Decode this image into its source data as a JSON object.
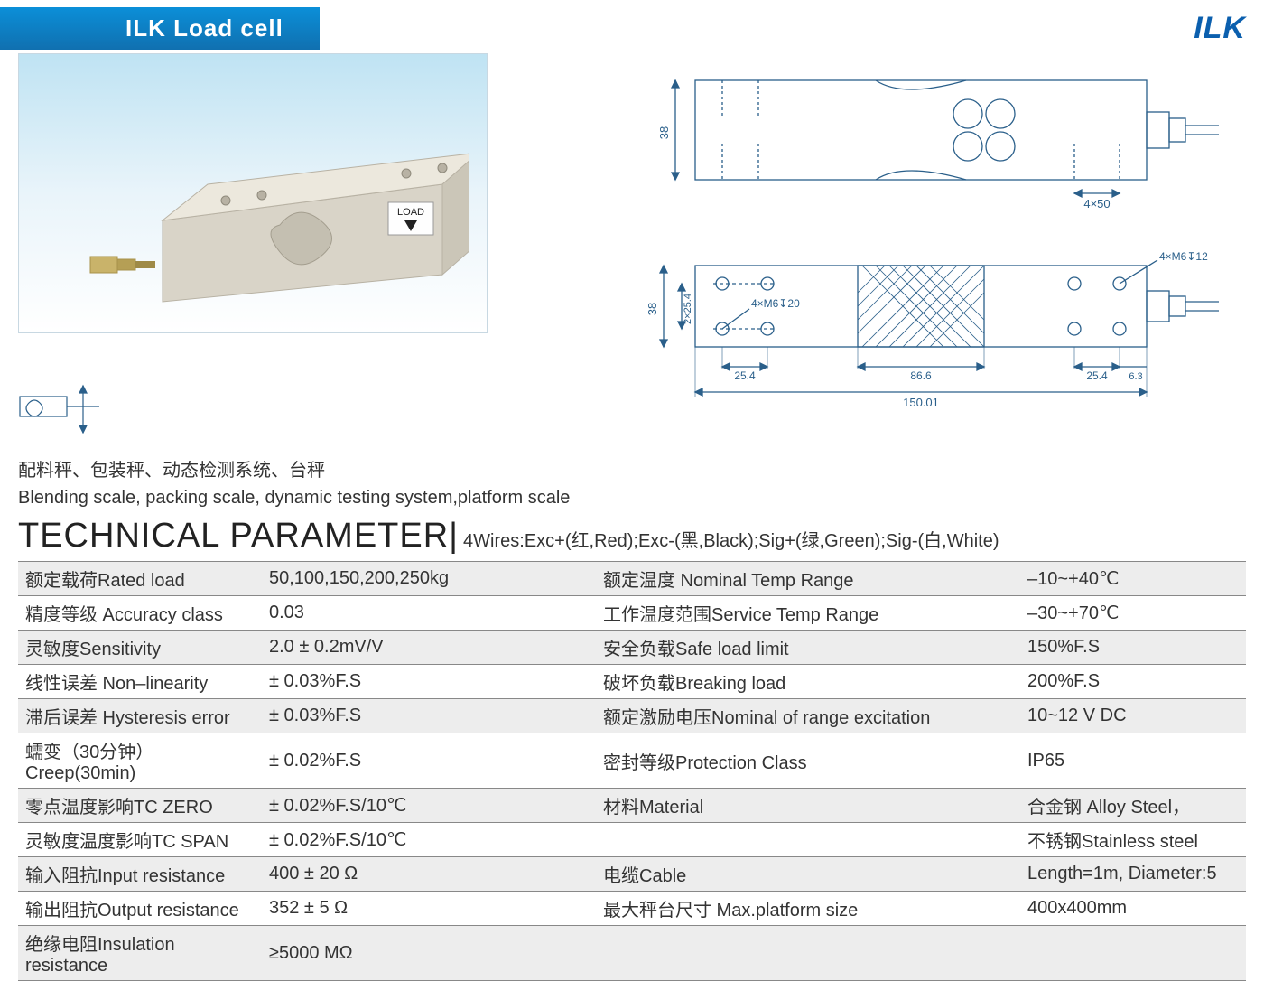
{
  "header": {
    "title": "ILK  Load cell",
    "model_right": "ILK"
  },
  "photo": {
    "load_label": "LOAD"
  },
  "drawing": {
    "dim_38_a": "38",
    "dim_4x50": "4×50",
    "dim_38_b": "38",
    "dim_2x254": "2×25.4",
    "dim_4xm6_20": "4×M6↧20",
    "dim_4xm6_12": "4×M6↧12",
    "dim_254_a": "25.4",
    "dim_866": "86.6",
    "dim_254_b": "25.4",
    "dim_63": "6.3",
    "dim_150": "150.01"
  },
  "applications": {
    "zh": "配料秤、包装秤、动态检测系统、台秤",
    "en": "Blending scale, packing scale, dynamic testing system,platform scale"
  },
  "tech_header": {
    "title": "TECHNICAL PARAMETER",
    "wires": "4Wires:Exc+(红,Red);Exc-(黑,Black);Sig+(绿,Green);Sig-(白,White)"
  },
  "params": {
    "rows": [
      {
        "l1": "额定载荷Rated load",
        "l2": "50,100,150,200,250kg",
        "r1": "额定温度 Nominal Temp Range",
        "r2": "–10~+40℃"
      },
      {
        "l1": "精度等级 Accuracy class",
        "l2": "0.03",
        "r1": "工作温度范围Service Temp Range",
        "r2": "–30~+70℃"
      },
      {
        "l1": "灵敏度Sensitivity",
        "l2": "2.0 ± 0.2mV/V",
        "r1": "安全负载Safe load limit",
        "r2": "150%F.S"
      },
      {
        "l1": "线性误差 Non–linearity",
        "l2": "± 0.03%F.S",
        "r1": "破坏负载Breaking load",
        "r2": "200%F.S"
      },
      {
        "l1": "滞后误差 Hysteresis error",
        "l2": "± 0.03%F.S",
        "r1": "额定激励电压Nominal of range excitation",
        "r2": "10~12 V DC"
      },
      {
        "l1": "蠕变（30分钟）Creep(30min)",
        "l2": "± 0.02%F.S",
        "r1": "密封等级Protection Class",
        "r2": "IP65"
      },
      {
        "l1": "零点温度影响TC ZERO",
        "l2": "± 0.02%F.S/10℃",
        "r1": "材料Material",
        "r2": "合金钢 Alloy Steel，"
      },
      {
        "l1": "灵敏度温度影响TC SPAN",
        "l2": "± 0.02%F.S/10℃",
        "r1": "",
        "r2": "不锈钢Stainless steel"
      },
      {
        "l1": "输入阻抗Input resistance",
        "l2": "400 ± 20 Ω",
        "r1": "电缆Cable",
        "r2": "Length=1m, Diameter:5"
      },
      {
        "l1": "输出阻抗Output resistance",
        "l2": "352 ± 5 Ω",
        "r1": "最大秤台尺寸 Max.platform size",
        "r2": "400x400mm"
      },
      {
        "l1": "绝缘电阻Insulation resistance",
        "l2": "≥5000 MΩ",
        "r1": "",
        "r2": ""
      }
    ]
  },
  "colors": {
    "header_blue_top": "#0b8fd8",
    "header_blue_bottom": "#1070b0",
    "model_blue": "#0b5fae",
    "row_odd": "#ededed",
    "row_even": "#ffffff",
    "border": "#888888",
    "text": "#333333",
    "drawing_stroke": "#2a5f8a",
    "photo_bg_top": "#bfe3f3"
  }
}
